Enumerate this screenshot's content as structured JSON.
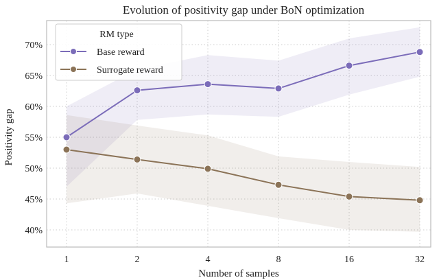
{
  "chart_data": {
    "type": "line",
    "title": "Evolution of positivity gap under BoN optimization",
    "xlabel": "Number of samples",
    "ylabel": "Positivity gap",
    "categories": [
      "1",
      "2",
      "4",
      "8",
      "16",
      "32"
    ],
    "ylim": [
      38,
      74
    ],
    "yticks": [
      40,
      45,
      50,
      55,
      60,
      65,
      70
    ],
    "ytick_labels": [
      "40%",
      "45%",
      "50%",
      "55%",
      "60%",
      "65%",
      "70%"
    ],
    "grid": true,
    "legend": {
      "title": "RM type",
      "placement": "top-left"
    },
    "series": [
      {
        "name": "Base reward",
        "color": "#7b6cb9",
        "values": [
          55.0,
          62.6,
          63.6,
          62.9,
          66.6,
          68.8
        ],
        "band_lower": [
          47.0,
          57.8,
          58.7,
          58.3,
          61.9,
          64.8
        ],
        "band_upper": [
          60.0,
          66.0,
          68.3,
          67.4,
          71.0,
          72.8
        ]
      },
      {
        "name": "Surrogate reward",
        "color": "#8b7357",
        "values": [
          53.0,
          51.4,
          49.9,
          47.3,
          45.4,
          44.8
        ],
        "band_lower": [
          44.3,
          45.9,
          43.9,
          41.9,
          40.0,
          39.7
        ],
        "band_upper": [
          58.6,
          56.9,
          55.3,
          51.9,
          51.0,
          50.2
        ]
      }
    ]
  }
}
